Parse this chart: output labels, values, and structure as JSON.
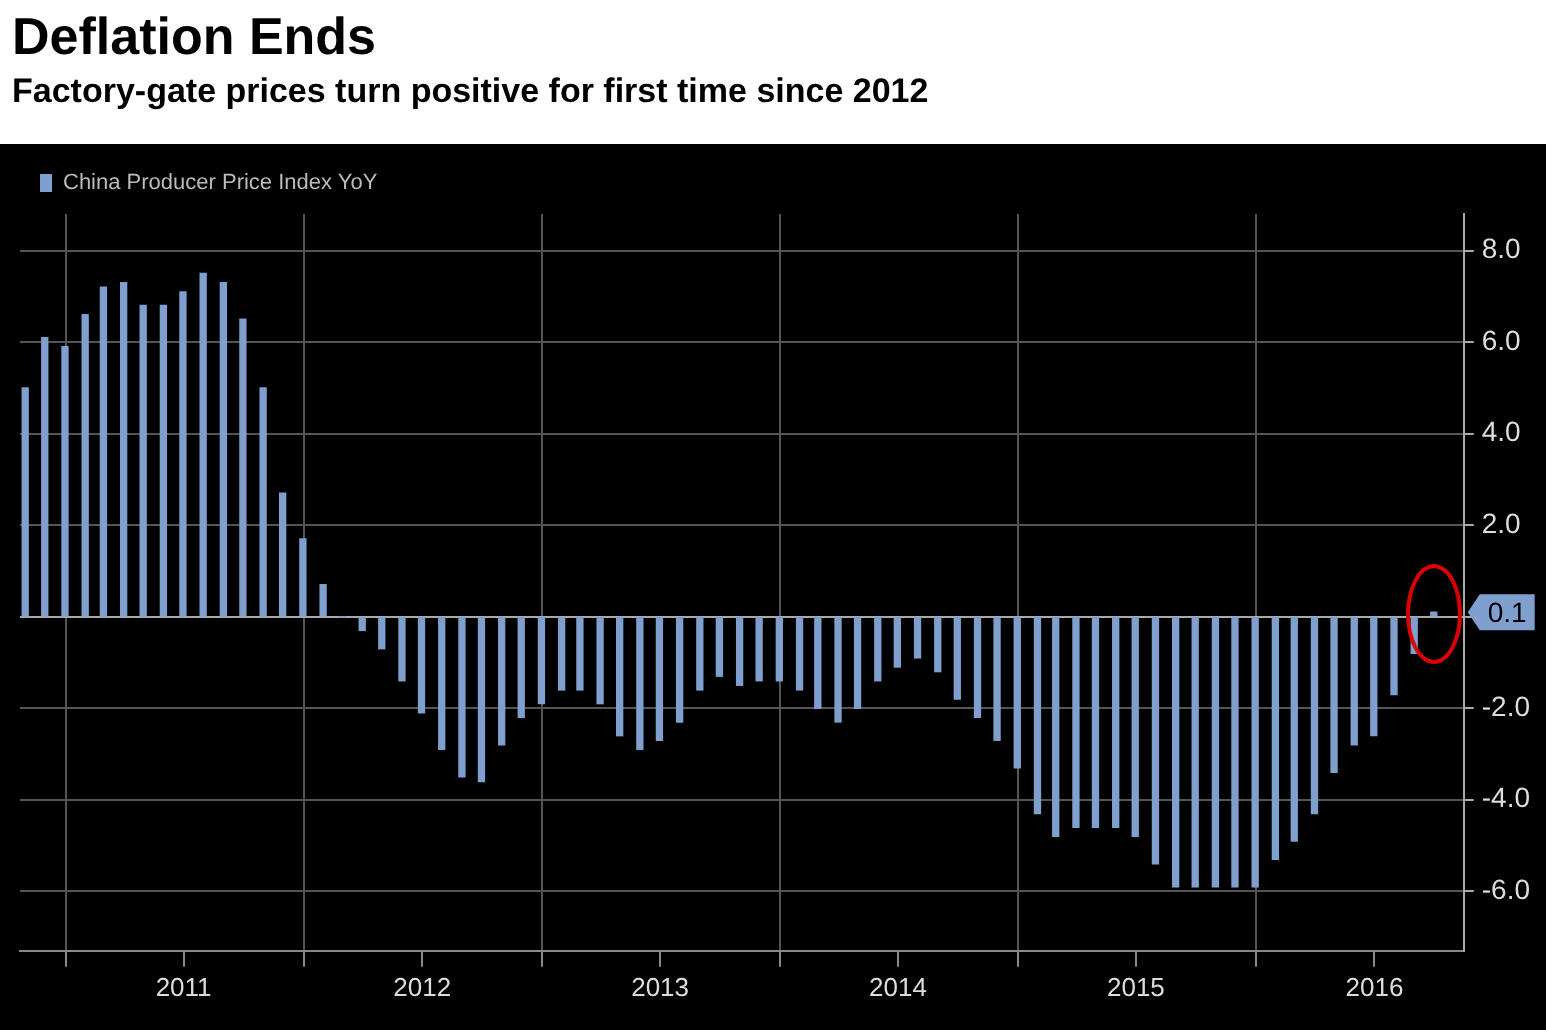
{
  "chart_data": {
    "type": "bar",
    "title": "Deflation Ends",
    "subtitle": "Factory-gate prices turn positive for first time since 2012",
    "x": [
      "2010-10-31",
      "2010-11-30",
      "2010-12-31",
      "2011-01-31",
      "2011-02-28",
      "2011-03-31",
      "2011-04-30",
      "2011-05-31",
      "2011-06-30",
      "2011-07-31",
      "2011-08-31",
      "2011-09-30",
      "2011-10-31",
      "2011-11-30",
      "2011-12-31",
      "2012-01-31",
      "2012-02-29",
      "2012-03-31",
      "2012-04-30",
      "2012-05-31",
      "2012-06-30",
      "2012-07-31",
      "2012-08-31",
      "2012-09-30",
      "2012-10-31",
      "2012-11-30",
      "2012-12-31",
      "2013-01-31",
      "2013-02-28",
      "2013-03-31",
      "2013-04-30",
      "2013-05-31",
      "2013-06-30",
      "2013-07-31",
      "2013-08-31",
      "2013-09-30",
      "2013-10-31",
      "2013-11-30",
      "2013-12-31",
      "2014-01-31",
      "2014-02-28",
      "2014-03-31",
      "2014-04-30",
      "2014-05-31",
      "2014-06-30",
      "2014-07-31",
      "2014-08-31",
      "2014-09-30",
      "2014-10-31",
      "2014-11-30",
      "2014-12-31",
      "2015-01-31",
      "2015-02-28",
      "2015-03-31",
      "2015-04-30",
      "2015-05-31",
      "2015-06-30",
      "2015-07-31",
      "2015-08-31",
      "2015-09-30",
      "2015-10-31",
      "2015-11-30",
      "2015-12-31",
      "2016-01-31",
      "2016-02-29",
      "2016-03-31",
      "2016-04-30",
      "2016-05-31",
      "2016-06-30",
      "2016-07-31",
      "2016-08-31",
      "2016-09-30"
    ],
    "series": [
      {
        "name": "China Producer Price Index YoY",
        "color": "#7f9fcf",
        "values": [
          5.0,
          6.1,
          5.9,
          6.6,
          7.2,
          7.3,
          6.8,
          6.8,
          7.1,
          7.5,
          7.3,
          6.5,
          5.0,
          2.7,
          1.7,
          0.7,
          0.0,
          -0.3,
          -0.7,
          -1.4,
          -2.1,
          -2.9,
          -3.5,
          -3.6,
          -2.8,
          -2.2,
          -1.9,
          -1.6,
          -1.6,
          -1.9,
          -2.6,
          -2.9,
          -2.7,
          -2.3,
          -1.6,
          -1.3,
          -1.5,
          -1.4,
          -1.4,
          -1.6,
          -2.0,
          -2.3,
          -2.0,
          -1.4,
          -1.1,
          -0.9,
          -1.2,
          -1.8,
          -2.2,
          -2.7,
          -3.3,
          -4.3,
          -4.8,
          -4.6,
          -4.6,
          -4.6,
          -4.8,
          -5.4,
          -5.9,
          -5.9,
          -5.9,
          -5.9,
          -5.9,
          -5.3,
          -4.9,
          -4.3,
          -3.4,
          -2.8,
          -2.6,
          -1.7,
          -0.8,
          0.1
        ]
      }
    ],
    "xlim": [
      "2010-10-23",
      "2016-11-15"
    ],
    "annotations": [
      "0.1"
    ],
    "xticks": [
      {
        "value": "2011-01-01",
        "label": null
      },
      {
        "value": "2011-07-01",
        "label": "2011"
      },
      {
        "value": "2012-01-01",
        "label": null
      },
      {
        "value": "2012-07-01",
        "label": "2012"
      },
      {
        "value": "2013-01-01",
        "label": null
      },
      {
        "value": "2013-07-01",
        "label": "2013"
      },
      {
        "value": "2014-01-01",
        "label": null
      },
      {
        "value": "2014-07-01",
        "label": "2014"
      },
      {
        "value": "2015-01-01",
        "label": null
      },
      {
        "value": "2015-07-01",
        "label": "2015"
      },
      {
        "value": "2016-01-01",
        "label": null
      },
      {
        "value": "2016-07-01",
        "label": "2016"
      }
    ],
    "ylim": [
      -7.3,
      8.8
    ],
    "yticks": [
      {
        "value": -6,
        "label": "-6.0"
      },
      {
        "value": -4,
        "label": "-4.0"
      },
      {
        "value": -2,
        "label": "-2.0"
      },
      {
        "value": 0,
        "label": null
      },
      {
        "value": 2,
        "label": "2.0"
      },
      {
        "value": 4,
        "label": "4.0"
      },
      {
        "value": 6,
        "label": "6.0"
      },
      {
        "value": 8,
        "label": "8.0"
      }
    ],
    "grid": true,
    "legend": "top left"
  }
}
